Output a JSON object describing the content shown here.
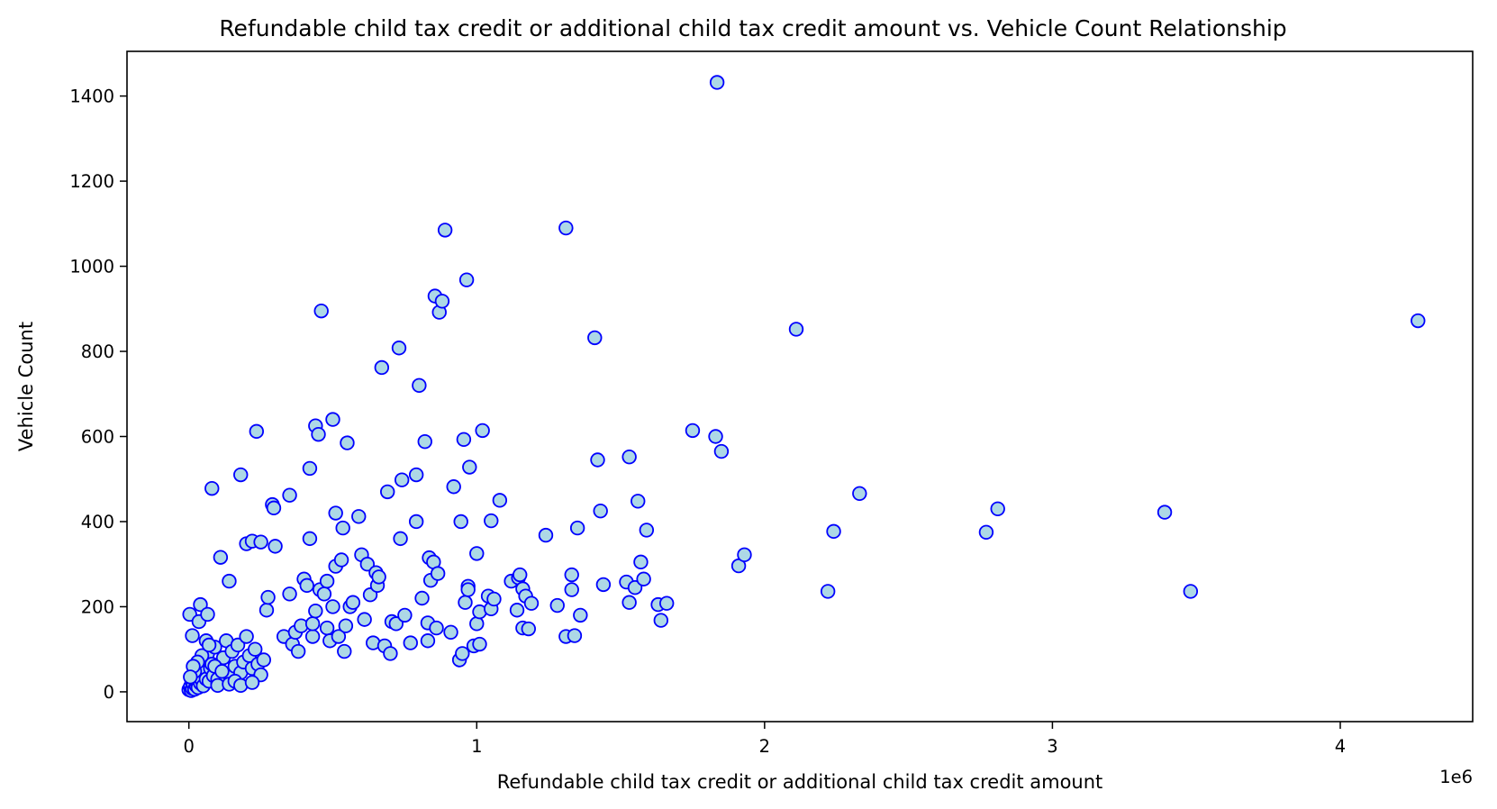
{
  "chart_data": {
    "type": "scatter",
    "title": "Refundable child tax credit or additional child tax credit amount vs. Vehicle Count Relationship",
    "xlabel": "Refundable child tax credit or additional child tax credit amount",
    "ylabel": "Vehicle Count",
    "x_offset_label": "1e6",
    "xlim": [
      -0.215,
      4.46
    ],
    "ylim": [
      -70,
      1505
    ],
    "x_ticks": [
      0,
      1,
      2,
      3,
      4
    ],
    "x_tick_labels": [
      "0",
      "1",
      "2",
      "3",
      "4"
    ],
    "y_ticks": [
      0,
      200,
      400,
      600,
      800,
      1000,
      1200,
      1400
    ],
    "y_tick_labels": [
      "0",
      "200",
      "400",
      "600",
      "800",
      "1000",
      "1200",
      "1400"
    ],
    "grid": false,
    "legend": "none",
    "marker_fill": "#add8e6",
    "marker_edge": "#0000ff",
    "points": [
      [
        0.0,
        5
      ],
      [
        0.005,
        12
      ],
      [
        0.008,
        3
      ],
      [
        0.01,
        25
      ],
      [
        0.012,
        8
      ],
      [
        0.015,
        18
      ],
      [
        0.018,
        30
      ],
      [
        0.02,
        6
      ],
      [
        0.022,
        40
      ],
      [
        0.025,
        15
      ],
      [
        0.028,
        22
      ],
      [
        0.03,
        55
      ],
      [
        0.032,
        10
      ],
      [
        0.035,
        35
      ],
      [
        0.038,
        48
      ],
      [
        0.04,
        20
      ],
      [
        0.042,
        60
      ],
      [
        0.045,
        28
      ],
      [
        0.048,
        75
      ],
      [
        0.05,
        14
      ],
      [
        0.055,
        45
      ],
      [
        0.06,
        30
      ],
      [
        0.065,
        90
      ],
      [
        0.07,
        25
      ],
      [
        0.075,
        55
      ],
      [
        0.08,
        65
      ],
      [
        0.085,
        38
      ],
      [
        0.09,
        105
      ],
      [
        0.1,
        18
      ],
      [
        0.11,
        50
      ],
      [
        0.12,
        80
      ],
      [
        0.13,
        120
      ],
      [
        0.14,
        35
      ],
      [
        0.15,
        95
      ],
      [
        0.16,
        60
      ],
      [
        0.17,
        110
      ],
      [
        0.18,
        45
      ],
      [
        0.19,
        70
      ],
      [
        0.2,
        130
      ],
      [
        0.21,
        85
      ],
      [
        0.22,
        55
      ],
      [
        0.23,
        100
      ],
      [
        0.24,
        65
      ],
      [
        0.25,
        40
      ],
      [
        0.26,
        75
      ],
      [
        0.003,
        182
      ],
      [
        0.012,
        132
      ],
      [
        0.035,
        165
      ],
      [
        0.04,
        205
      ],
      [
        0.065,
        182
      ],
      [
        0.06,
        120
      ],
      [
        0.045,
        85
      ],
      [
        0.07,
        110
      ],
      [
        0.03,
        70
      ],
      [
        0.02,
        48
      ],
      [
        0.015,
        60
      ],
      [
        0.005,
        35
      ],
      [
        0.09,
        60
      ],
      [
        0.1,
        30
      ],
      [
        0.115,
        48
      ],
      [
        0.1,
        15
      ],
      [
        0.14,
        18
      ],
      [
        0.16,
        25
      ],
      [
        0.18,
        15
      ],
      [
        0.22,
        22
      ],
      [
        0.08,
        478
      ],
      [
        0.11,
        316
      ],
      [
        0.14,
        260
      ],
      [
        0.18,
        510
      ],
      [
        0.2,
        348
      ],
      [
        0.22,
        354
      ],
      [
        0.235,
        612
      ],
      [
        0.25,
        352
      ],
      [
        0.27,
        192
      ],
      [
        0.275,
        222
      ],
      [
        0.29,
        440
      ],
      [
        0.295,
        432
      ],
      [
        0.3,
        342
      ],
      [
        0.33,
        130
      ],
      [
        0.35,
        462
      ],
      [
        0.35,
        230
      ],
      [
        0.36,
        112
      ],
      [
        0.37,
        140
      ],
      [
        0.38,
        95
      ],
      [
        0.39,
        155
      ],
      [
        0.4,
        265
      ],
      [
        0.41,
        250
      ],
      [
        0.42,
        525
      ],
      [
        0.42,
        360
      ],
      [
        0.43,
        130
      ],
      [
        0.43,
        160
      ],
      [
        0.44,
        190
      ],
      [
        0.44,
        625
      ],
      [
        0.45,
        605
      ],
      [
        0.455,
        240
      ],
      [
        0.46,
        895
      ],
      [
        0.47,
        230
      ],
      [
        0.48,
        260
      ],
      [
        0.48,
        150
      ],
      [
        0.49,
        120
      ],
      [
        0.5,
        200
      ],
      [
        0.5,
        640
      ],
      [
        0.51,
        295
      ],
      [
        0.51,
        420
      ],
      [
        0.52,
        130
      ],
      [
        0.53,
        310
      ],
      [
        0.535,
        385
      ],
      [
        0.54,
        95
      ],
      [
        0.545,
        155
      ],
      [
        0.55,
        585
      ],
      [
        0.56,
        200
      ],
      [
        0.57,
        210
      ],
      [
        0.59,
        412
      ],
      [
        0.6,
        322
      ],
      [
        0.61,
        170
      ],
      [
        0.62,
        300
      ],
      [
        0.63,
        228
      ],
      [
        0.64,
        115
      ],
      [
        0.65,
        280
      ],
      [
        0.655,
        250
      ],
      [
        0.66,
        270
      ],
      [
        0.67,
        762
      ],
      [
        0.68,
        108
      ],
      [
        0.69,
        470
      ],
      [
        0.7,
        90
      ],
      [
        0.705,
        165
      ],
      [
        0.72,
        160
      ],
      [
        0.73,
        808
      ],
      [
        0.735,
        360
      ],
      [
        0.74,
        498
      ],
      [
        0.75,
        180
      ],
      [
        0.77,
        115
      ],
      [
        0.79,
        510
      ],
      [
        0.79,
        400
      ],
      [
        0.8,
        720
      ],
      [
        0.81,
        220
      ],
      [
        0.82,
        588
      ],
      [
        0.83,
        120
      ],
      [
        0.83,
        162
      ],
      [
        0.835,
        315
      ],
      [
        0.84,
        262
      ],
      [
        0.85,
        305
      ],
      [
        0.855,
        930
      ],
      [
        0.86,
        150
      ],
      [
        0.865,
        278
      ],
      [
        0.87,
        892
      ],
      [
        0.88,
        918
      ],
      [
        0.89,
        1085
      ],
      [
        0.91,
        140
      ],
      [
        0.92,
        482
      ],
      [
        0.94,
        75
      ],
      [
        0.945,
        400
      ],
      [
        0.95,
        90
      ],
      [
        0.955,
        593
      ],
      [
        0.96,
        210
      ],
      [
        0.965,
        968
      ],
      [
        0.97,
        248
      ],
      [
        0.97,
        240
      ],
      [
        0.975,
        528
      ],
      [
        0.99,
        108
      ],
      [
        1.0,
        325
      ],
      [
        1.0,
        160
      ],
      [
        1.01,
        188
      ],
      [
        1.01,
        112
      ],
      [
        1.02,
        614
      ],
      [
        1.04,
        225
      ],
      [
        1.05,
        195
      ],
      [
        1.05,
        402
      ],
      [
        1.06,
        218
      ],
      [
        1.08,
        450
      ],
      [
        1.12,
        260
      ],
      [
        1.14,
        192
      ],
      [
        1.145,
        268
      ],
      [
        1.15,
        275
      ],
      [
        1.16,
        150
      ],
      [
        1.16,
        242
      ],
      [
        1.17,
        225
      ],
      [
        1.18,
        148
      ],
      [
        1.19,
        208
      ],
      [
        1.24,
        368
      ],
      [
        1.28,
        203
      ],
      [
        1.31,
        1090
      ],
      [
        1.31,
        130
      ],
      [
        1.33,
        275
      ],
      [
        1.33,
        240
      ],
      [
        1.34,
        132
      ],
      [
        1.35,
        385
      ],
      [
        1.36,
        180
      ],
      [
        1.41,
        832
      ],
      [
        1.42,
        545
      ],
      [
        1.43,
        425
      ],
      [
        1.44,
        252
      ],
      [
        1.52,
        258
      ],
      [
        1.53,
        210
      ],
      [
        1.53,
        552
      ],
      [
        1.55,
        245
      ],
      [
        1.56,
        448
      ],
      [
        1.57,
        305
      ],
      [
        1.58,
        265
      ],
      [
        1.59,
        380
      ],
      [
        1.63,
        205
      ],
      [
        1.64,
        168
      ],
      [
        1.66,
        208
      ],
      [
        1.75,
        614
      ],
      [
        1.83,
        600
      ],
      [
        1.835,
        1432
      ],
      [
        1.85,
        565
      ],
      [
        1.91,
        296
      ],
      [
        1.93,
        322
      ],
      [
        2.11,
        852
      ],
      [
        2.22,
        236
      ],
      [
        2.24,
        377
      ],
      [
        2.33,
        466
      ],
      [
        2.77,
        375
      ],
      [
        2.81,
        430
      ],
      [
        3.39,
        422
      ],
      [
        3.48,
        236
      ],
      [
        4.27,
        872
      ]
    ]
  }
}
